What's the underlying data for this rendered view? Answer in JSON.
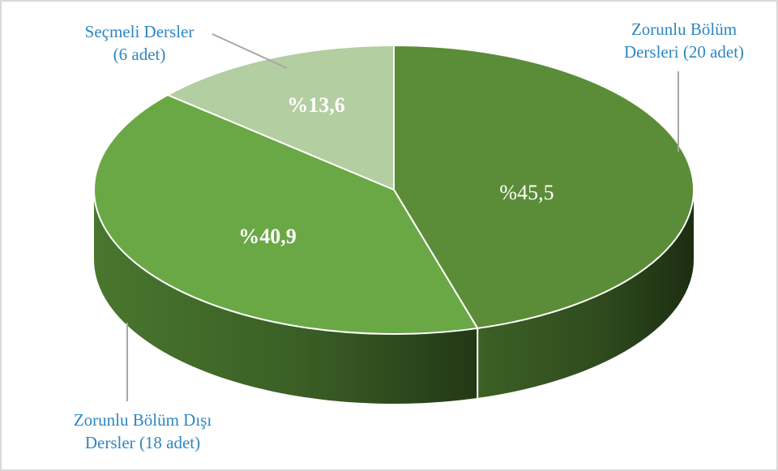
{
  "chart_data": {
    "type": "pie",
    "style": "3d",
    "title": "",
    "slices": [
      {
        "label_lines": [
          "Zorunlu Bölüm",
          "Dersleri (20 adet)"
        ],
        "count": 20,
        "value": 45.5,
        "value_label": "%45,5",
        "color": "#5b8c37",
        "side_color": "#3f6527"
      },
      {
        "label_lines": [
          "Zorunlu Bölüm Dışı",
          "Dersler (18 adet)"
        ],
        "count": 18,
        "value": 40.9,
        "value_label": "%40,9",
        "color": "#6aa846",
        "side_color": "#4d7d31"
      },
      {
        "label_lines": [
          "Seçmeli Dersler",
          "(6 adet)"
        ],
        "count": 6,
        "value": 13.6,
        "value_label": "%13,6",
        "color": "#b3cea0",
        "side_color": "#8aa77a"
      }
    ],
    "legend": "none",
    "data_labels": "inside",
    "category_labels": "outside-with-leaders"
  }
}
